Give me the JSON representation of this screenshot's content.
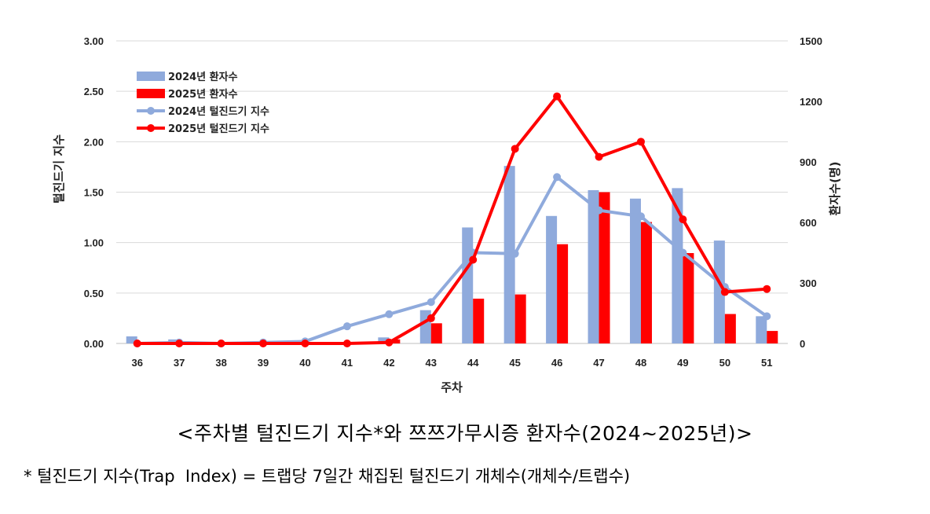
{
  "chart_data": {
    "type": "bar+line",
    "title": "",
    "categories": [
      "36",
      "37",
      "38",
      "39",
      "40",
      "41",
      "42",
      "43",
      "44",
      "45",
      "46",
      "47",
      "48",
      "49",
      "50",
      "51"
    ],
    "xlabel": "주차",
    "ylabel_left": "털진드기 지수",
    "ylabel_right": "환자수(명)",
    "ylim_left": [
      0,
      3
    ],
    "ylim_right": [
      0,
      1500
    ],
    "yticks_left": [
      "0.00",
      "0.50",
      "1.00",
      "1.50",
      "2.00",
      "2.50",
      "3.00"
    ],
    "yticks_right": [
      "0",
      "300",
      "600",
      "900",
      "1200",
      "1500"
    ],
    "grid": true,
    "legend_position": "top-left",
    "bar_series": [
      {
        "name": "2024년 환자수",
        "color": "#8faadc",
        "axis": "right",
        "values": [
          35,
          20,
          5,
          10,
          12,
          5,
          30,
          165,
          575,
          880,
          632,
          760,
          718,
          770,
          510,
          135
        ]
      },
      {
        "name": "2025년 환자수",
        "color": "#ff0000",
        "axis": "right",
        "values": [
          0,
          0,
          0,
          0,
          0,
          5,
          20,
          100,
          222,
          243,
          492,
          750,
          602,
          448,
          146,
          62
        ]
      }
    ],
    "line_series": [
      {
        "name": "2024년 털진드기 지수",
        "color": "#8faadc",
        "axis": "left",
        "values": [
          0.0,
          0.01,
          0.0,
          0.01,
          0.02,
          0.17,
          0.29,
          0.41,
          0.9,
          0.89,
          1.65,
          1.32,
          1.26,
          0.9,
          0.56,
          0.27
        ]
      },
      {
        "name": "2025년 털진드기 지수",
        "color": "#ff0000",
        "axis": "left",
        "values": [
          0.0,
          0.0,
          0.0,
          0.0,
          0.0,
          0.0,
          0.01,
          0.25,
          0.83,
          1.93,
          2.45,
          1.85,
          2.0,
          1.23,
          0.51,
          0.54
        ]
      }
    ]
  },
  "caption": {
    "title": "<주차별 털진드기 지수*와 쯔쯔가무시증 환자수(2024~2025년)>",
    "note": "* 털진드기 지수(Trap  Index) = 트랩당 7일간 채집된 털진드기 개체수(개체수/트랩수)"
  }
}
